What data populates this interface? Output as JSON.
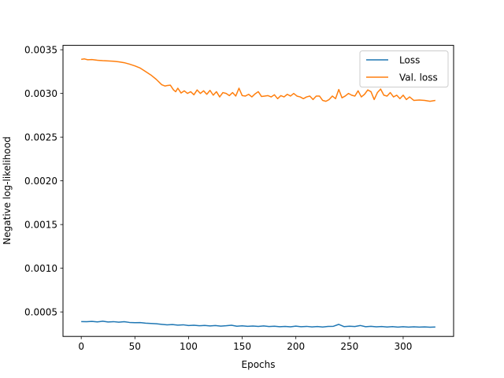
{
  "chart_data": {
    "type": "line",
    "xlabel": "Epochs",
    "ylabel": "Negative log-likelihood",
    "xlim": [
      -17,
      347
    ],
    "ylim": [
      0.00022,
      0.00355
    ],
    "xticks": [
      0,
      50,
      100,
      150,
      200,
      250,
      300
    ],
    "yticks": [
      0.0005,
      0.001,
      0.0015,
      0.002,
      0.0025,
      0.003,
      0.0035
    ],
    "ytick_labels": [
      "0.0005",
      "0.0010",
      "0.0015",
      "0.0020",
      "0.0025",
      "0.0030",
      "0.0035"
    ],
    "grid": false,
    "legend_position": "top-right",
    "series": [
      {
        "name": "Loss",
        "color": "#1f77b4",
        "x": [
          0,
          5,
          10,
          15,
          20,
          25,
          30,
          35,
          40,
          45,
          50,
          55,
          60,
          65,
          70,
          75,
          80,
          85,
          90,
          95,
          100,
          105,
          110,
          115,
          120,
          125,
          130,
          135,
          140,
          145,
          150,
          155,
          160,
          165,
          170,
          175,
          180,
          185,
          190,
          195,
          200,
          205,
          210,
          215,
          220,
          225,
          230,
          235,
          240,
          245,
          250,
          255,
          260,
          265,
          270,
          275,
          280,
          285,
          290,
          295,
          300,
          305,
          310,
          315,
          320,
          325,
          330
        ],
        "y": [
          0.00039,
          0.000388,
          0.000392,
          0.000386,
          0.000394,
          0.000385,
          0.000389,
          0.000383,
          0.000388,
          0.00038,
          0.000377,
          0.000378,
          0.000372,
          0.000368,
          0.000365,
          0.000358,
          0.000352,
          0.000356,
          0.000349,
          0.000353,
          0.000345,
          0.000348,
          0.000342,
          0.000346,
          0.00034,
          0.000345,
          0.000338,
          0.000342,
          0.000348,
          0.000337,
          0.000341,
          0.000336,
          0.000339,
          0.000334,
          0.00034,
          0.000333,
          0.000337,
          0.000331,
          0.000335,
          0.00033,
          0.000338,
          0.000331,
          0.000335,
          0.000329,
          0.000333,
          0.000328,
          0.000334,
          0.000336,
          0.000358,
          0.000332,
          0.000337,
          0.000333,
          0.000345,
          0.000331,
          0.000336,
          0.00033,
          0.000333,
          0.000328,
          0.000332,
          0.000327,
          0.000331,
          0.000326,
          0.00033,
          0.000326,
          0.000329,
          0.000325,
          0.000328
        ]
      },
      {
        "name": "Val. loss",
        "color": "#ff7f0e",
        "x": [
          0,
          3,
          6,
          10,
          15,
          20,
          25,
          30,
          35,
          40,
          45,
          50,
          55,
          60,
          65,
          70,
          75,
          78,
          80,
          83,
          86,
          88,
          90,
          93,
          96,
          99,
          102,
          105,
          108,
          111,
          114,
          117,
          120,
          123,
          126,
          129,
          132,
          135,
          138,
          141,
          144,
          147,
          150,
          153,
          156,
          159,
          162,
          165,
          168,
          171,
          174,
          177,
          180,
          183,
          186,
          189,
          192,
          195,
          198,
          201,
          204,
          207,
          210,
          213,
          216,
          219,
          222,
          225,
          228,
          231,
          234,
          237,
          240,
          243,
          246,
          249,
          252,
          255,
          258,
          261,
          264,
          267,
          270,
          273,
          276,
          279,
          282,
          285,
          288,
          291,
          294,
          297,
          300,
          303,
          306,
          310,
          315,
          320,
          325,
          330
        ],
        "y": [
          0.00339,
          0.003395,
          0.003385,
          0.003388,
          0.00338,
          0.003375,
          0.003372,
          0.003368,
          0.003362,
          0.003352,
          0.003335,
          0.003315,
          0.00329,
          0.00325,
          0.00321,
          0.00316,
          0.0031,
          0.003085,
          0.00309,
          0.003095,
          0.00304,
          0.00302,
          0.00306,
          0.003005,
          0.00303,
          0.003,
          0.00302,
          0.002985,
          0.00304,
          0.003,
          0.00303,
          0.00299,
          0.003035,
          0.00298,
          0.00302,
          0.00296,
          0.00301,
          0.003,
          0.002975,
          0.00301,
          0.00297,
          0.00306,
          0.002975,
          0.00297,
          0.00299,
          0.00296,
          0.002995,
          0.00302,
          0.002965,
          0.00297,
          0.002975,
          0.00296,
          0.002985,
          0.00294,
          0.002975,
          0.00296,
          0.00299,
          0.00297,
          0.003,
          0.00297,
          0.00296,
          0.00294,
          0.00296,
          0.00297,
          0.00293,
          0.00297,
          0.00297,
          0.00292,
          0.00291,
          0.00293,
          0.00297,
          0.00294,
          0.003045,
          0.00295,
          0.00297,
          0.003,
          0.00298,
          0.00297,
          0.00303,
          0.00296,
          0.00299,
          0.00304,
          0.00302,
          0.00293,
          0.00301,
          0.00305,
          0.00298,
          0.00297,
          0.00301,
          0.00296,
          0.00298,
          0.00294,
          0.00298,
          0.00293,
          0.00296,
          0.00292,
          0.002925,
          0.00292,
          0.00291,
          0.00292
        ]
      }
    ]
  }
}
